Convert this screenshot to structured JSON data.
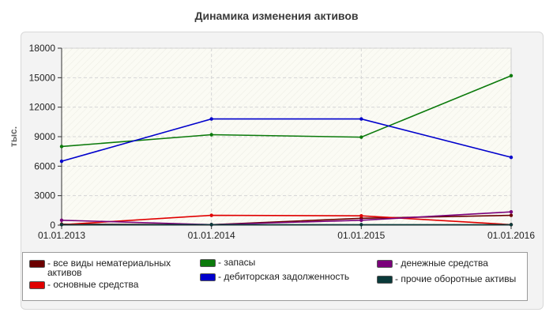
{
  "chart_data": {
    "type": "line",
    "title": "Динамика изменения активов",
    "ylabel": "тыс.",
    "xlabel": "",
    "x": [
      "01.01.2013",
      "01.01.2014",
      "01.01.2015",
      "01.01.2016"
    ],
    "ylim": [
      0,
      18000
    ],
    "yticks": [
      0,
      3000,
      6000,
      9000,
      12000,
      15000,
      18000
    ],
    "grid": true,
    "legend_position": "bottom",
    "series": [
      {
        "name": "- все виды нематериальных\nактивов",
        "color": "#6b0000",
        "values": [
          100,
          50,
          700,
          1000
        ]
      },
      {
        "name": "- основные средства",
        "color": "#e00000",
        "values": [
          50,
          1000,
          950,
          50
        ]
      },
      {
        "name": "- запасы",
        "color": "#0b7a0b",
        "values": [
          8000,
          9200,
          8950,
          15200
        ]
      },
      {
        "name": "- дебиторская задолженность",
        "color": "#0000cc",
        "values": [
          6500,
          10800,
          10800,
          6900
        ]
      },
      {
        "name": "- денежные средства",
        "color": "#7a007a",
        "values": [
          500,
          50,
          500,
          1350
        ]
      },
      {
        "name": "- прочие оборотные активы",
        "color": "#0a3a3a",
        "values": [
          50,
          50,
          50,
          50
        ]
      }
    ]
  }
}
